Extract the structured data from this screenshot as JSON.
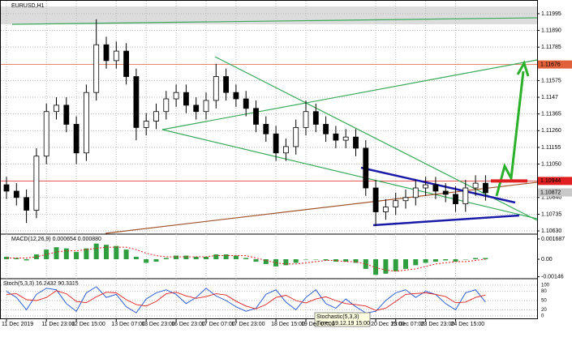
{
  "chart_data": {
    "type": "candlestick",
    "title": "EURUSD,H1",
    "categories": [
      "11 Dec 2019",
      null,
      null,
      null,
      "11 Dec 23:00",
      null,
      null,
      "12 Dec 15:00",
      null,
      null,
      null,
      "13 Dec 07:00",
      null,
      null,
      "13 Dec 23:00",
      null,
      null,
      "16 Dec 23:00",
      null,
      null,
      "17 Dec 07:00",
      null,
      null,
      "17 Dec 23:00",
      null,
      null,
      null,
      "18 Dec 15:00",
      null,
      null,
      "19 Dec 07:00",
      null,
      null,
      null,
      null,
      null,
      null,
      "20 Dec 15:00",
      null,
      "23 Dec 07:00",
      null,
      null,
      "23 Dec 23:00",
      null,
      null,
      "24 Dec 15:00",
      null,
      null,
      null
    ],
    "open": [
      1.1092,
      1.1088,
      1.1084,
      1.1076,
      1.111,
      1.1138,
      1.1142,
      1.113,
      1.1112,
      1.115,
      1.118,
      1.117,
      1.1176,
      1.116,
      1.1128,
      1.1132,
      1.1138,
      1.1146,
      1.115,
      1.1142,
      1.1138,
      1.1145,
      1.116,
      1.115,
      1.1146,
      1.114,
      1.113,
      1.1124,
      1.1112,
      1.1116,
      1.1128,
      1.1138,
      1.113,
      1.1124,
      1.112,
      1.1122,
      1.1115,
      1.109,
      1.1075,
      1.1078,
      1.1082,
      1.1084,
      1.109,
      1.1092,
      1.1088,
      1.1086,
      1.108,
      1.109,
      1.1093
    ],
    "high": [
      1.1097,
      1.1093,
      1.1089,
      1.1115,
      1.1143,
      1.1147,
      1.1147,
      1.1135,
      1.1155,
      1.1196,
      1.1185,
      1.1182,
      1.1181,
      1.1165,
      1.1137,
      1.1143,
      1.1151,
      1.1155,
      1.1155,
      1.1147,
      1.115,
      1.1168,
      1.1165,
      1.1155,
      1.1151,
      1.1145,
      1.1135,
      1.1129,
      1.1121,
      1.1133,
      1.1145,
      1.1143,
      1.1135,
      1.1129,
      1.1127,
      1.1127,
      1.112,
      1.1095,
      1.1083,
      1.1087,
      1.1089,
      1.1095,
      1.1097,
      1.1097,
      1.1093,
      1.1091,
      1.1095,
      1.1098,
      1.1098
    ],
    "low": [
      1.1083,
      1.1079,
      1.1068,
      1.1071,
      1.1105,
      1.1133,
      1.1125,
      1.1105,
      1.1107,
      1.1145,
      1.1165,
      1.1165,
      1.1155,
      1.112,
      1.1123,
      1.1127,
      1.1133,
      1.1141,
      1.1137,
      1.1133,
      1.1133,
      1.114,
      1.1145,
      1.1141,
      1.1135,
      1.1125,
      1.1119,
      1.1107,
      1.1107,
      1.1111,
      1.1123,
      1.1125,
      1.1119,
      1.1115,
      1.1115,
      1.111,
      1.1085,
      1.1066,
      1.107,
      1.1073,
      1.1077,
      1.1079,
      1.1085,
      1.1083,
      1.1081,
      1.1075,
      1.1075,
      1.1085,
      1.1082
    ],
    "close": [
      1.1088,
      1.1084,
      1.1076,
      1.111,
      1.1138,
      1.1142,
      1.113,
      1.1112,
      1.115,
      1.118,
      1.117,
      1.1176,
      1.116,
      1.1128,
      1.1132,
      1.1138,
      1.1146,
      1.115,
      1.1142,
      1.1138,
      1.1145,
      1.116,
      1.115,
      1.1146,
      1.114,
      1.113,
      1.1124,
      1.1112,
      1.1116,
      1.1128,
      1.1138,
      1.113,
      1.1124,
      1.112,
      1.1122,
      1.1115,
      1.109,
      1.1075,
      1.1078,
      1.1082,
      1.1084,
      1.109,
      1.1092,
      1.1088,
      1.1086,
      1.108,
      1.109,
      1.1093,
      1.1087
    ],
    "ylim": [
      1.10615,
      1.12071
    ],
    "yticks": [
      1.11995,
      {
        "value": 1.1189,
        "label": "1.11890"
      },
      1.11785,
      1.11575,
      1.1147,
      1.11365,
      {
        "value": 1.1126,
        "label": "1.11260"
      },
      1.11155,
      {
        "value": 1.1105,
        "label": "1.11050"
      },
      {
        "value": 1.1084,
        "label": "1.10840"
      },
      1.10735,
      {
        "value": 1.1063,
        "label": "1.10630"
      }
    ],
    "levels": [
      {
        "value": 1.11676,
        "color": "#e0603a"
      },
      {
        "value": 1.10944,
        "color": "#e02020"
      }
    ],
    "bid": 1.10872,
    "grid": true,
    "macd": {
      "label": "MACD(12,26,9) 0.000654 0.000880",
      "values": [
        0.0002,
        0.0001,
        -0.0001,
        0.0004,
        0.0008,
        0.001,
        0.0009,
        0.0006,
        0.0009,
        0.0013,
        0.0012,
        0.0011,
        0.0008,
        0.0002,
        -0.0003,
        -0.0002,
        0.0001,
        0.0003,
        0.0003,
        0.0002,
        0.0002,
        0.0004,
        0.0004,
        0.0003,
        0.0001,
        -0.0002,
        -0.0004,
        -0.0006,
        -0.0005,
        -0.0003,
        0.0,
        0.0,
        -0.0001,
        -0.0002,
        -0.0002,
        -0.0003,
        -0.0008,
        -0.0013,
        -0.0012,
        -0.001,
        -0.0008,
        -0.0005,
        -0.0003,
        -0.0002,
        -0.0001,
        -0.0002,
        0.0,
        0.0001,
        0.0001
      ],
      "signal": [
        0.0001,
        0.0001,
        0.0001,
        0.0002,
        0.0004,
        0.0006,
        0.0007,
        0.0007,
        0.0008,
        0.0009,
        0.001,
        0.001,
        0.001,
        0.0008,
        0.0005,
        0.0003,
        0.0002,
        0.0002,
        0.0002,
        0.0002,
        0.0002,
        0.0003,
        0.0003,
        0.0003,
        0.0003,
        0.0001,
        -0.0001,
        -0.0003,
        -0.0004,
        -0.0004,
        -0.0003,
        -0.0002,
        -0.0001,
        -0.0001,
        -0.0002,
        -0.0002,
        -0.0004,
        -0.0007,
        -0.0009,
        -0.001,
        -0.0009,
        -0.0008,
        -0.0006,
        -0.0004,
        -0.0003,
        -0.0002,
        -0.0002,
        -0.0001,
        0.0
      ],
      "ylim": [
        -0.00155,
        0.00202
      ],
      "yticks": [
        0.001687,
        {
          "value": 0,
          "label": "0.00"
        },
        -0.00146
      ]
    },
    "stoch": {
      "label": "Stoch(5,3,3) 16.2432 90.3315",
      "main": [
        80,
        60,
        20,
        70,
        90,
        85,
        40,
        15,
        75,
        95,
        60,
        70,
        30,
        10,
        55,
        75,
        85,
        70,
        40,
        60,
        90,
        65,
        50,
        30,
        15,
        25,
        70,
        85,
        45,
        20,
        60,
        85,
        40,
        25,
        55,
        30,
        10,
        15,
        50,
        75,
        85,
        60,
        80,
        70,
        40,
        20,
        75,
        85,
        45
      ],
      "signal": [
        70,
        72,
        53,
        50,
        60,
        82,
        72,
        47,
        43,
        62,
        77,
        75,
        53,
        37,
        32,
        47,
        72,
        77,
        65,
        57,
        63,
        72,
        68,
        48,
        32,
        23,
        37,
        60,
        67,
        50,
        42,
        55,
        62,
        50,
        40,
        37,
        32,
        18,
        25,
        47,
        70,
        73,
        75,
        70,
        63,
        43,
        45,
        60,
        68
      ],
      "ylim": [
        0,
        100
      ],
      "yticks": [
        100,
        80,
        50,
        20,
        0
      ]
    },
    "tooltip": {
      "title": "Stochastic(5,3,3)",
      "time": "Time: 19.12.19 15:00"
    }
  }
}
